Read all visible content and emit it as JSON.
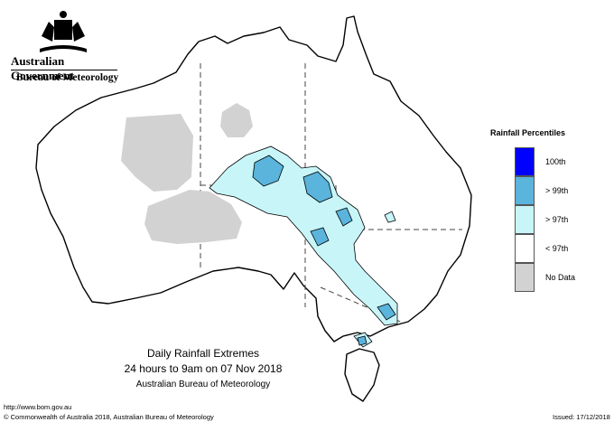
{
  "header": {
    "government": "Australian Government",
    "agency": "Bureau of Meteorology"
  },
  "legend": {
    "title": "Rainfall Percentiles",
    "items": [
      {
        "label": "100th",
        "color": "#0000ff"
      },
      {
        "label": "> 99th",
        "color": "#5ab4dc"
      },
      {
        "label": "> 97th",
        "color": "#c8f5f8"
      },
      {
        "label": "< 97th",
        "color": "#ffffff"
      },
      {
        "label": "No Data",
        "color": "#d2d2d2"
      }
    ]
  },
  "caption": {
    "line1": "Daily Rainfall Extremes",
    "line2": "24 hours to 9am on 07 Nov 2018",
    "line3": "Australian Bureau of Meteorology"
  },
  "footer": {
    "url": "http://www.bom.gov.au",
    "copyright": "© Commonwealth of Australia 2018, Australian Bureau of Meteorology",
    "issued": "Issued: 17/12/2018"
  },
  "icons": [
    "coat-of-arms-icon"
  ]
}
